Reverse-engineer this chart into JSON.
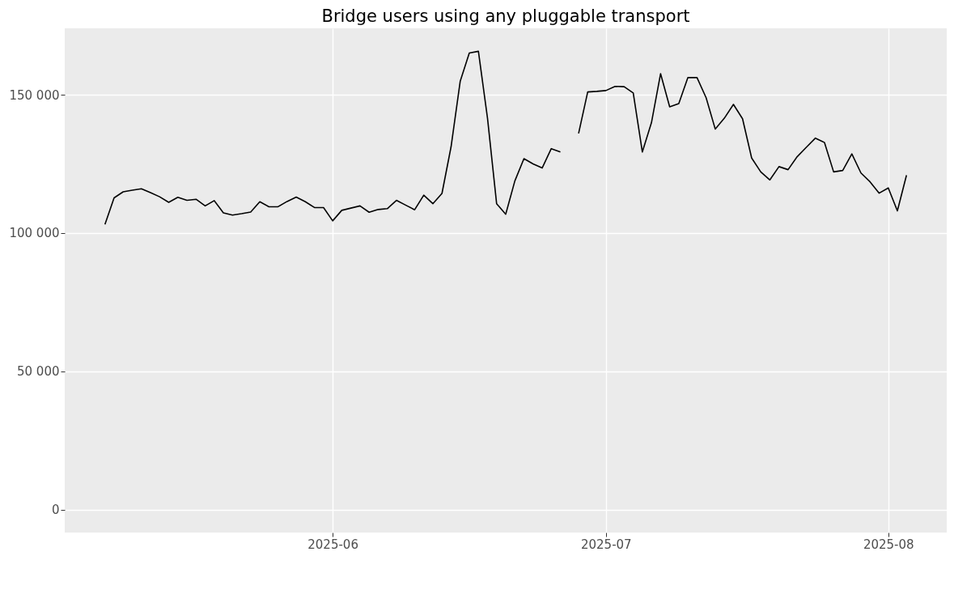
{
  "chart_data": {
    "type": "line",
    "title": "Bridge users using any pluggable transport",
    "x": [
      "2025-05-07",
      "2025-05-08",
      "2025-05-09",
      "2025-05-10",
      "2025-05-11",
      "2025-05-12",
      "2025-05-13",
      "2025-05-14",
      "2025-05-15",
      "2025-05-16",
      "2025-05-17",
      "2025-05-18",
      "2025-05-19",
      "2025-05-20",
      "2025-05-21",
      "2025-05-22",
      "2025-05-23",
      "2025-05-24",
      "2025-05-25",
      "2025-05-26",
      "2025-05-27",
      "2025-05-28",
      "2025-05-29",
      "2025-05-30",
      "2025-05-31",
      "2025-06-01",
      "2025-06-02",
      "2025-06-03",
      "2025-06-04",
      "2025-06-05",
      "2025-06-06",
      "2025-06-07",
      "2025-06-08",
      "2025-06-09",
      "2025-06-10",
      "2025-06-11",
      "2025-06-12",
      "2025-06-13",
      "2025-06-14",
      "2025-06-15",
      "2025-06-16",
      "2025-06-17",
      "2025-06-18",
      "2025-06-19",
      "2025-06-20",
      "2025-06-21",
      "2025-06-22",
      "2025-06-23",
      "2025-06-24",
      "2025-06-25",
      "2025-06-26",
      "2025-06-27",
      "2025-06-28",
      "2025-06-29",
      "2025-06-30",
      "2025-07-01",
      "2025-07-02",
      "2025-07-03",
      "2025-07-04",
      "2025-07-05",
      "2025-07-06",
      "2025-07-07",
      "2025-07-08",
      "2025-07-09",
      "2025-07-10",
      "2025-07-11",
      "2025-07-12",
      "2025-07-13",
      "2025-07-14",
      "2025-07-15",
      "2025-07-16",
      "2025-07-17",
      "2025-07-18",
      "2025-07-19",
      "2025-07-20",
      "2025-07-21",
      "2025-07-22",
      "2025-07-23",
      "2025-07-24",
      "2025-07-25",
      "2025-07-26",
      "2025-07-27",
      "2025-07-28",
      "2025-07-29",
      "2025-07-30",
      "2025-07-31",
      "2025-08-01",
      "2025-08-02",
      "2025-08-03"
    ],
    "series": [
      {
        "color": "#000000",
        "values": [
          103100,
          112700,
          114900,
          115500,
          116000,
          114600,
          113100,
          111100,
          112900,
          111800,
          112200,
          109800,
          111700,
          107300,
          106500,
          107000,
          107600,
          111300,
          109500,
          109500,
          111400,
          113000,
          111300,
          109200,
          109200,
          104400,
          108200,
          109000,
          109800,
          107500,
          108500,
          108800,
          111800,
          110100,
          108400,
          113700,
          110600,
          114300,
          131200,
          154800,
          165100,
          165700,
          141500,
          110600,
          106800,
          118800,
          126900,
          125000,
          123500,
          130500,
          129300,
          null,
          136000,
          151000,
          151200,
          151500,
          153000,
          152900,
          150600,
          129300,
          139900,
          157600,
          145600,
          146800,
          156200,
          156200,
          148900,
          137600,
          141500,
          146500,
          141300,
          127100,
          122100,
          119200,
          124000,
          122900,
          127600,
          131000,
          134300,
          132700,
          122100,
          122600,
          128600,
          121700,
          118500,
          114400,
          116300,
          108000,
          120900
        ]
      }
    ],
    "xlim": [
      "2025-05-02T14:00",
      "2025-08-07T10:00"
    ],
    "xticks": [
      "2025-06",
      "2025-07",
      "2025-08"
    ],
    "ylim": [
      -8300,
      174000
    ],
    "yticks": [
      {
        "value": 0,
        "label": "0"
      },
      {
        "value": 50000,
        "label": "50 000"
      },
      {
        "value": 100000,
        "label": "100 000"
      },
      {
        "value": 150000,
        "label": "150 000"
      }
    ],
    "grid": true,
    "line_style": "solid",
    "marker": "none",
    "legend": false
  }
}
